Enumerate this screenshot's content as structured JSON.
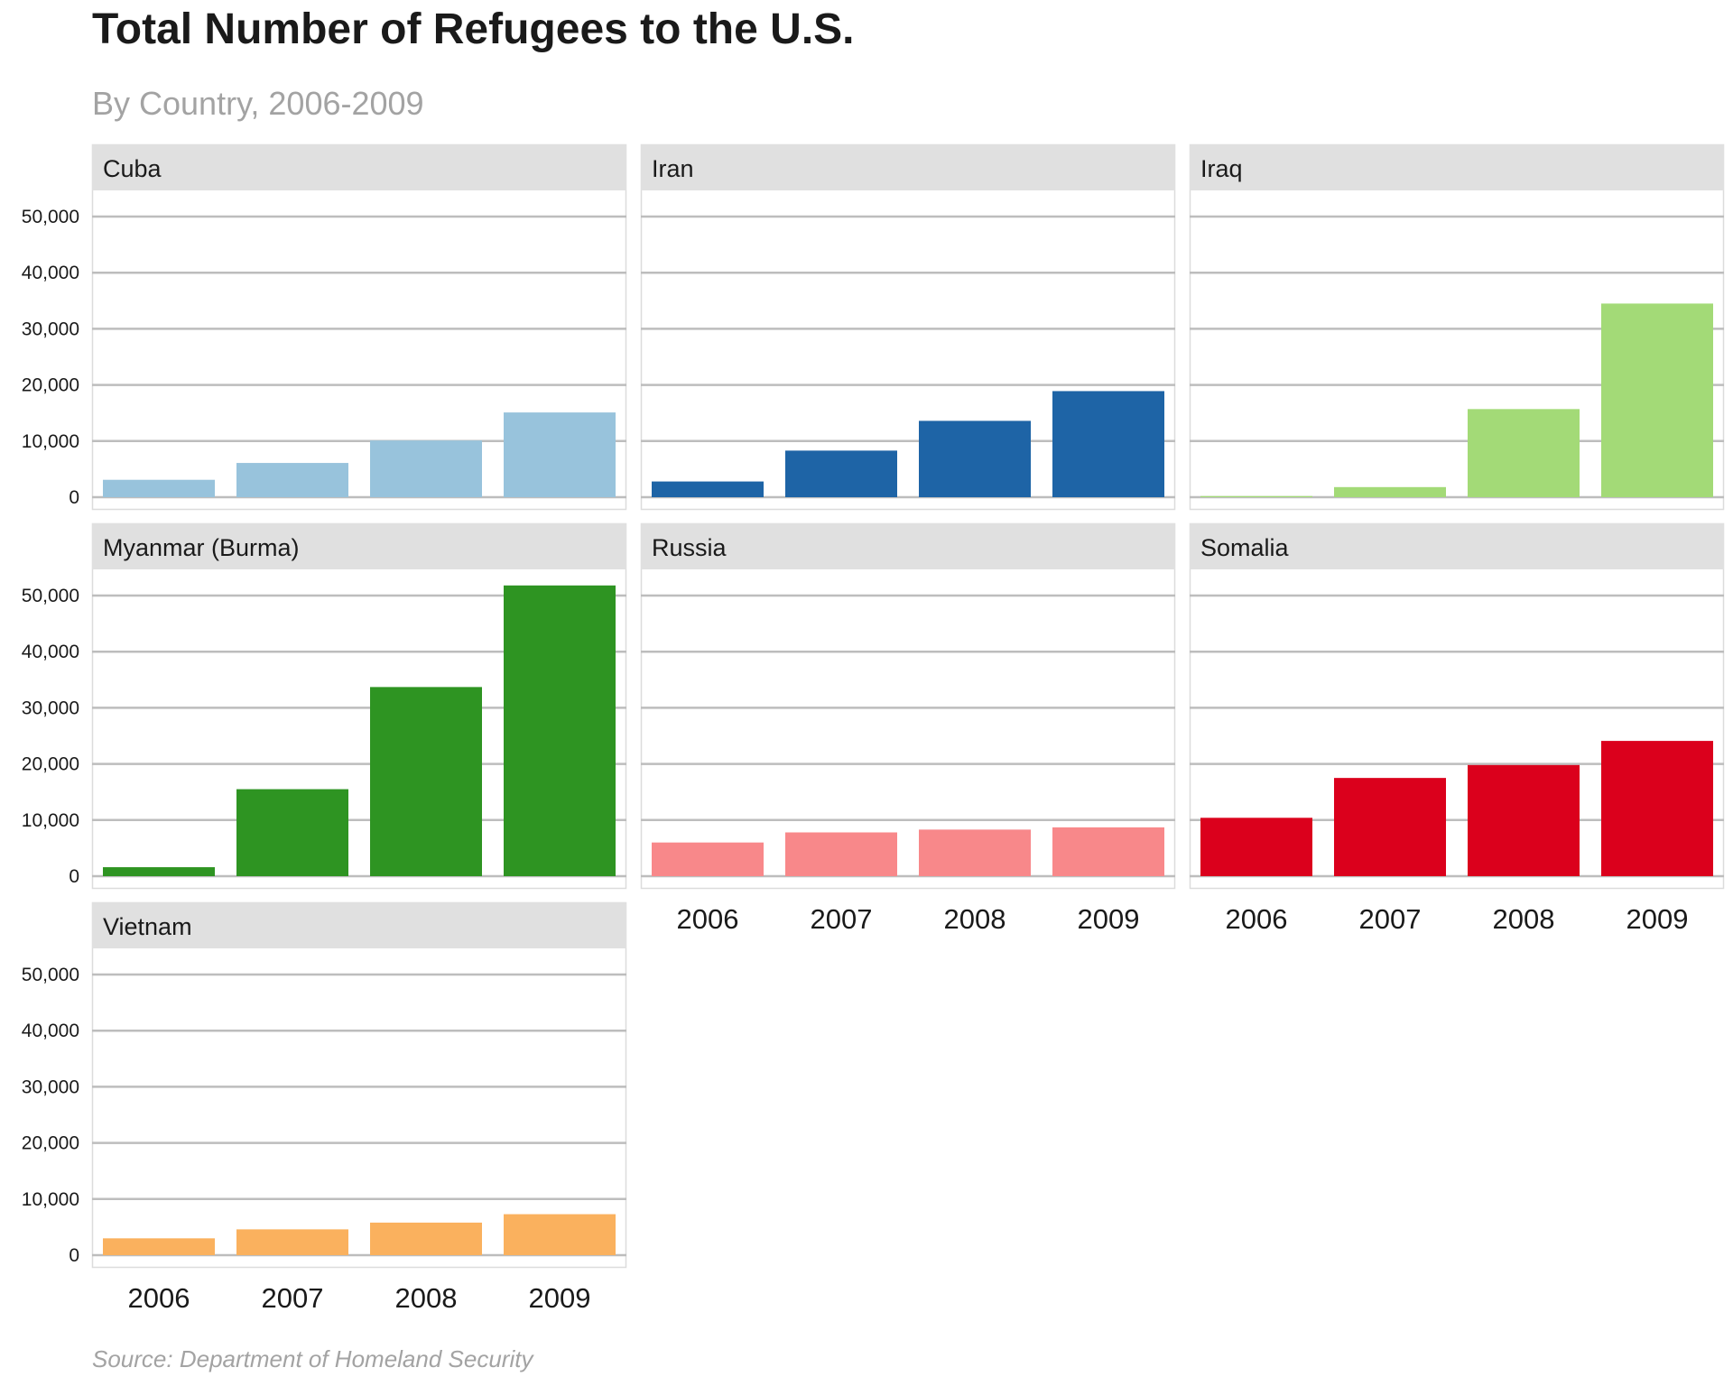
{
  "title": "Total Number of Refugees to the U.S.",
  "subtitle": "By Country, 2006-2009",
  "source": "Source: Department of Homeland Security",
  "chart_data": {
    "type": "bar",
    "layout": "facet-grid",
    "categories": [
      "2006",
      "2007",
      "2008",
      "2009"
    ],
    "ylim": [
      0,
      55000
    ],
    "y_ticks": [
      0,
      10000,
      20000,
      30000,
      40000,
      50000
    ],
    "y_tick_labels": [
      "0",
      "10,000",
      "20,000",
      "30,000",
      "40,000",
      "50,000"
    ],
    "grid": true,
    "panels": [
      {
        "name": "Cuba",
        "color": "#98c3dc",
        "values": [
          3100,
          6100,
          10100,
          15100
        ]
      },
      {
        "name": "Iran",
        "color": "#1e64a6",
        "values": [
          2800,
          8300,
          13600,
          18900
        ]
      },
      {
        "name": "Iraq",
        "color": "#a3da77",
        "values": [
          200,
          1800,
          15700,
          34500
        ]
      },
      {
        "name": "Myanmar (Burma)",
        "color": "#2e9422",
        "values": [
          1600,
          15500,
          33700,
          51800
        ]
      },
      {
        "name": "Russia",
        "color": "#f8888a",
        "values": [
          6000,
          7800,
          8300,
          8700
        ]
      },
      {
        "name": "Somalia",
        "color": "#db001c",
        "values": [
          10400,
          17500,
          19800,
          24100
        ]
      },
      {
        "name": "Vietnam",
        "color": "#fab15e",
        "values": [
          3000,
          4600,
          5800,
          7300
        ]
      }
    ]
  }
}
